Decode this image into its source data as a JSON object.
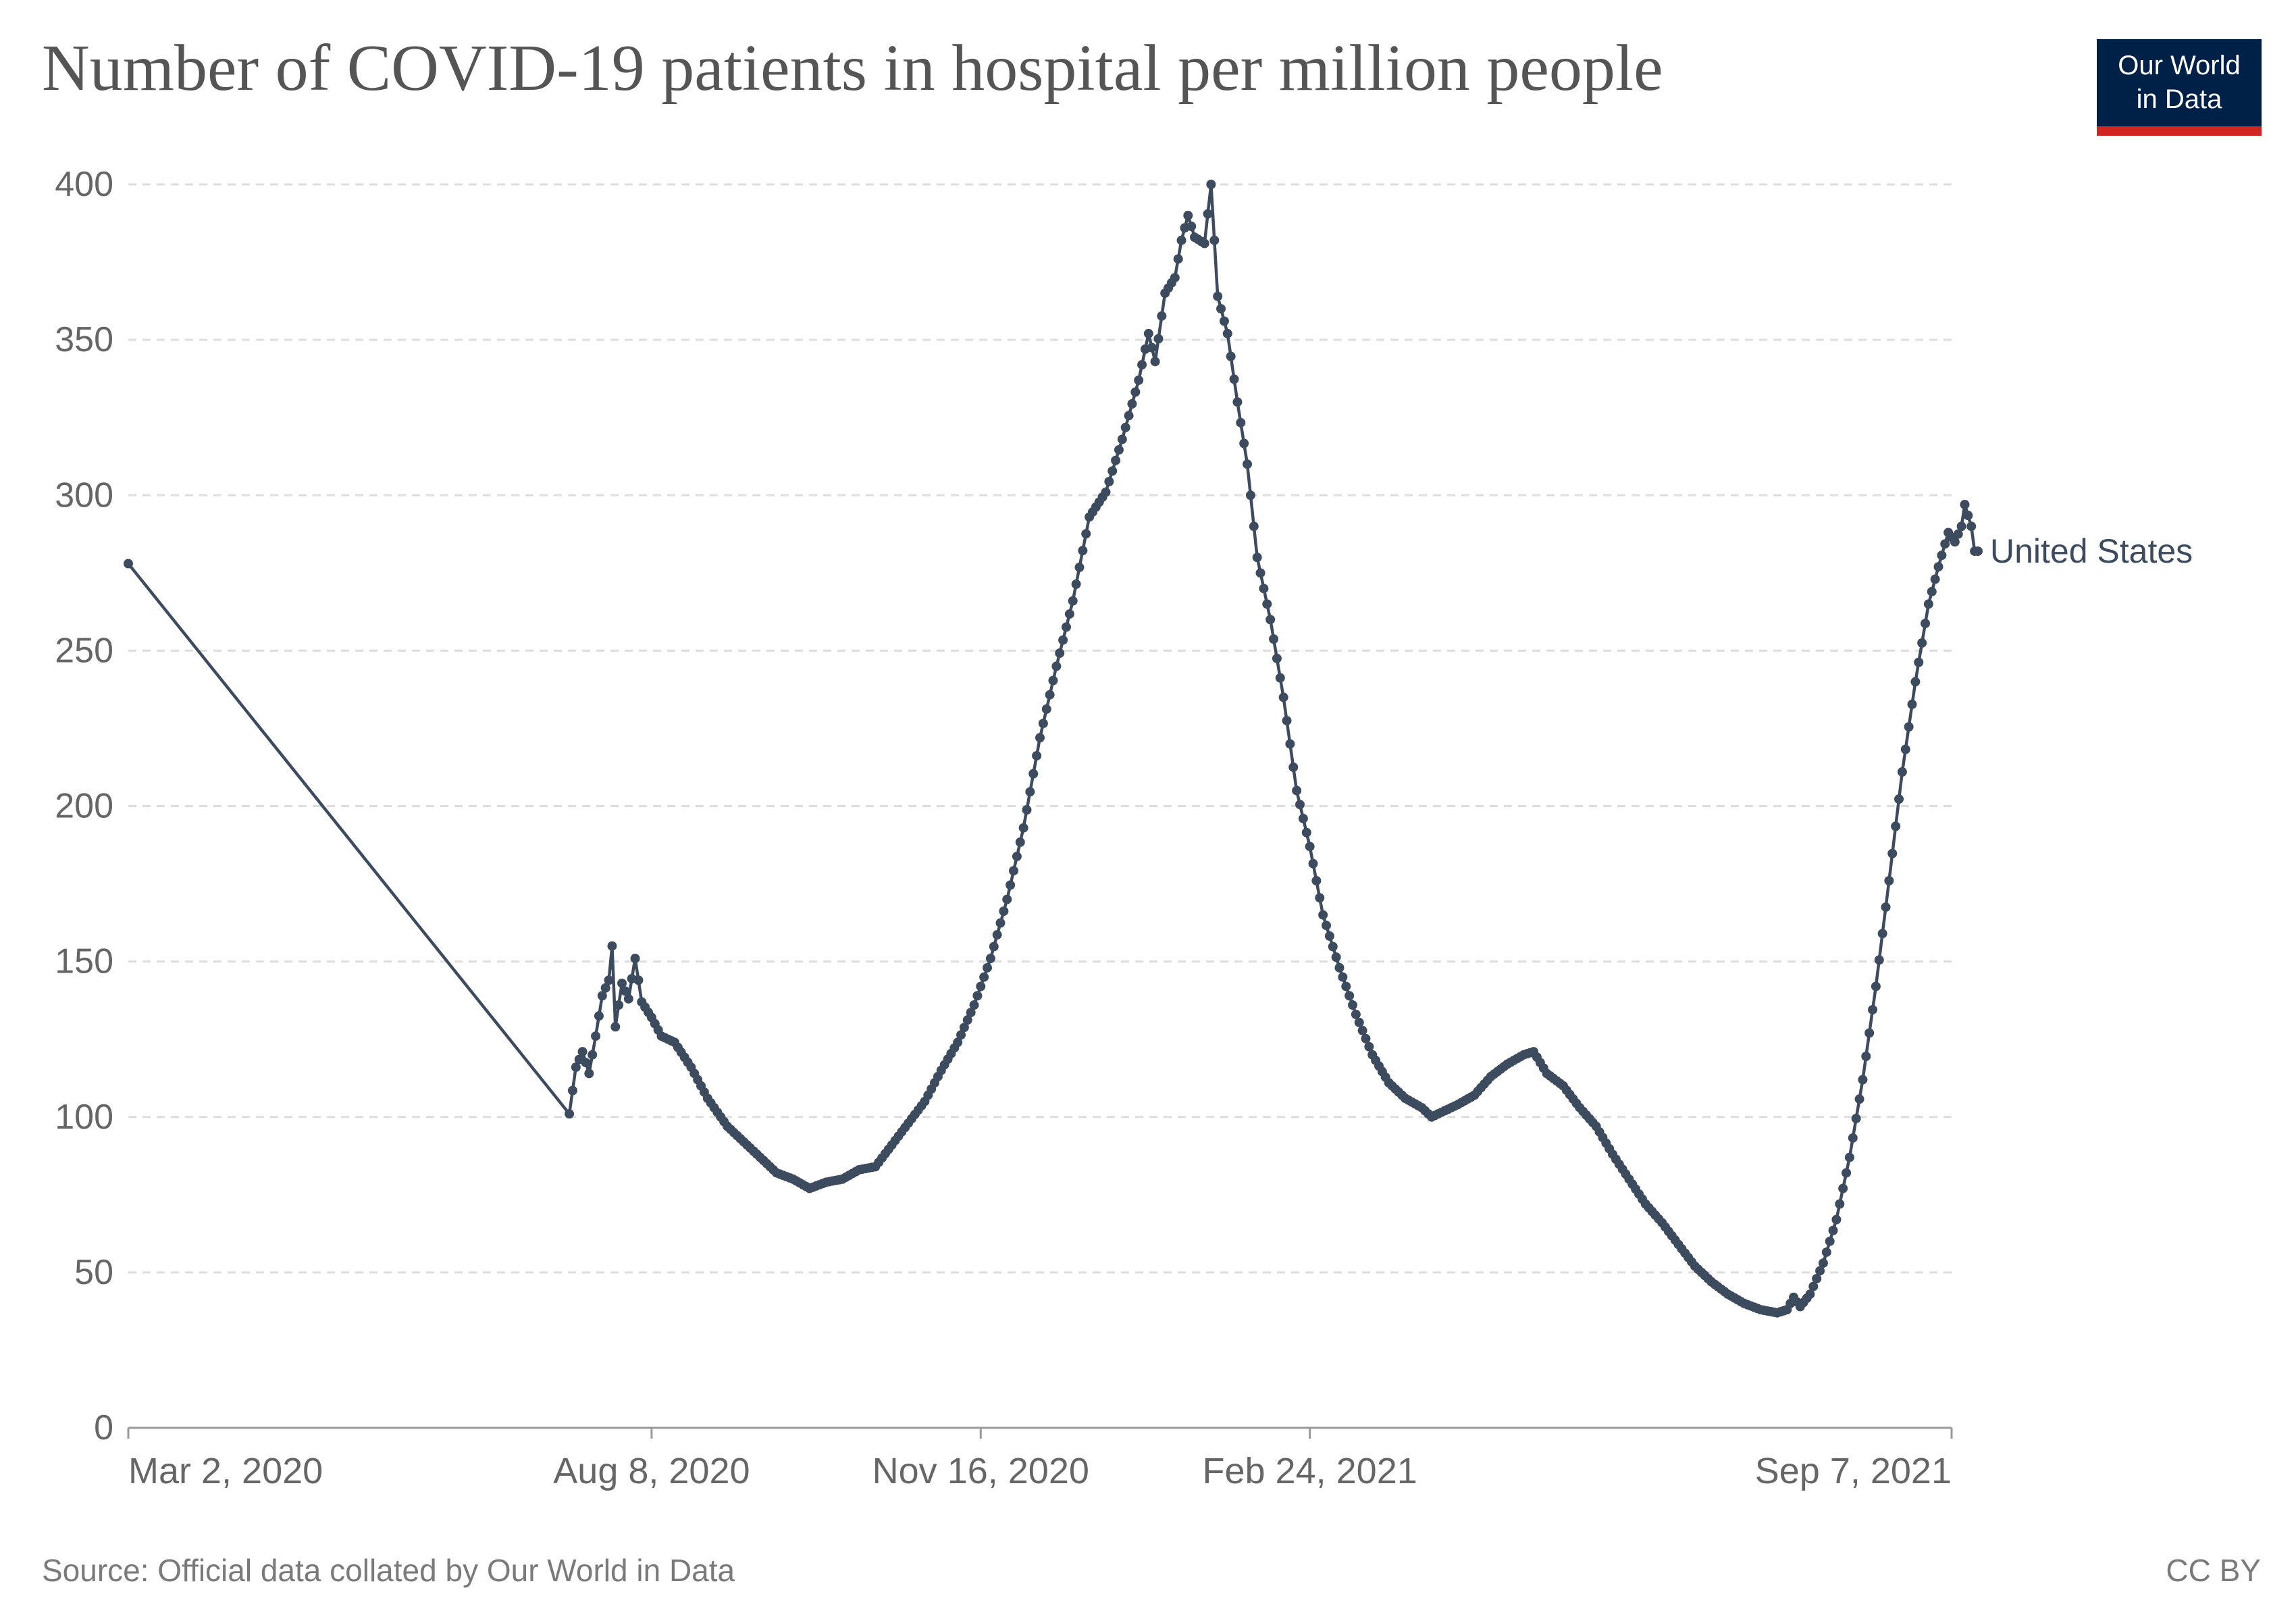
{
  "title": "Number of COVID-19 patients in hospital per million people",
  "logo": {
    "line1": "Our World",
    "line2": "in Data"
  },
  "source": "Source: Official data collated by Our World in Data",
  "license": "CC BY",
  "colors": {
    "series": "#3d4b5f",
    "grid": "#dddddd",
    "axis": "#999999",
    "tick_label": "#666666",
    "logo_bg": "#002147",
    "logo_bar": "#ce261e"
  },
  "chart_data": {
    "type": "line",
    "title": "Number of COVID-19 patients in hospital per million people",
    "xlabel": "",
    "ylabel": "",
    "xlim": [
      "2020-03-02",
      "2021-09-07"
    ],
    "ylim": [
      0,
      400
    ],
    "grid": "horizontal dashed",
    "x_ticks": [
      {
        "date": "2020-03-02",
        "label": "Mar 2, 2020"
      },
      {
        "date": "2020-08-08",
        "label": "Aug 8, 2020"
      },
      {
        "date": "2020-11-16",
        "label": "Nov 16, 2020"
      },
      {
        "date": "2021-02-24",
        "label": "Feb 24, 2021"
      },
      {
        "date": "2021-09-07",
        "label": "Sep 7, 2021"
      }
    ],
    "y_ticks": [
      0,
      50,
      100,
      150,
      200,
      250,
      300,
      350,
      400
    ],
    "series": [
      {
        "name": "United States",
        "points": [
          [
            "2020-03-02",
            278
          ],
          [
            "2020-07-14",
            101
          ],
          [
            "2020-07-16",
            116
          ],
          [
            "2020-07-18",
            121
          ],
          [
            "2020-07-20",
            114
          ],
          [
            "2020-07-22",
            126
          ],
          [
            "2020-07-24",
            139
          ],
          [
            "2020-07-26",
            144
          ],
          [
            "2020-07-27",
            155
          ],
          [
            "2020-07-28",
            129
          ],
          [
            "2020-07-30",
            143
          ],
          [
            "2020-08-01",
            138
          ],
          [
            "2020-08-03",
            151
          ],
          [
            "2020-08-05",
            137
          ],
          [
            "2020-08-08",
            132
          ],
          [
            "2020-08-11",
            126
          ],
          [
            "2020-08-15",
            124
          ],
          [
            "2020-08-20",
            116
          ],
          [
            "2020-08-25",
            106
          ],
          [
            "2020-08-31",
            97
          ],
          [
            "2020-09-05",
            92
          ],
          [
            "2020-09-10",
            87
          ],
          [
            "2020-09-15",
            82
          ],
          [
            "2020-09-20",
            80
          ],
          [
            "2020-09-25",
            77
          ],
          [
            "2020-09-30",
            79
          ],
          [
            "2020-10-05",
            80
          ],
          [
            "2020-10-10",
            83
          ],
          [
            "2020-10-15",
            84
          ],
          [
            "2020-10-20",
            91
          ],
          [
            "2020-10-25",
            98
          ],
          [
            "2020-10-30",
            105
          ],
          [
            "2020-11-04",
            115
          ],
          [
            "2020-11-09",
            124
          ],
          [
            "2020-11-14",
            136
          ],
          [
            "2020-11-19",
            151
          ],
          [
            "2020-11-24",
            170
          ],
          [
            "2020-11-29",
            193
          ],
          [
            "2020-12-04",
            222
          ],
          [
            "2020-12-09",
            245
          ],
          [
            "2020-12-14",
            266
          ],
          [
            "2020-12-19",
            293
          ],
          [
            "2020-12-24",
            301
          ],
          [
            "2020-12-29",
            318
          ],
          [
            "2021-01-03",
            337
          ],
          [
            "2021-01-06",
            352
          ],
          [
            "2021-01-08",
            343
          ],
          [
            "2021-01-11",
            365
          ],
          [
            "2021-01-14",
            370
          ],
          [
            "2021-01-16",
            382
          ],
          [
            "2021-01-18",
            390
          ],
          [
            "2021-01-20",
            383
          ],
          [
            "2021-01-23",
            381
          ],
          [
            "2021-01-25",
            400
          ],
          [
            "2021-01-27",
            364
          ],
          [
            "2021-01-30",
            352
          ],
          [
            "2021-02-02",
            330
          ],
          [
            "2021-02-05",
            310
          ],
          [
            "2021-02-08",
            280
          ],
          [
            "2021-02-12",
            260
          ],
          [
            "2021-02-16",
            235
          ],
          [
            "2021-02-20",
            205
          ],
          [
            "2021-02-24",
            187
          ],
          [
            "2021-02-28",
            165
          ],
          [
            "2021-03-05",
            148
          ],
          [
            "2021-03-10",
            133
          ],
          [
            "2021-03-15",
            120
          ],
          [
            "2021-03-20",
            111
          ],
          [
            "2021-03-25",
            106
          ],
          [
            "2021-03-30",
            103
          ],
          [
            "2021-04-02",
            100
          ],
          [
            "2021-04-06",
            102
          ],
          [
            "2021-04-10",
            104
          ],
          [
            "2021-04-15",
            107
          ],
          [
            "2021-04-20",
            113
          ],
          [
            "2021-04-25",
            117
          ],
          [
            "2021-04-30",
            120
          ],
          [
            "2021-05-03",
            121
          ],
          [
            "2021-05-07",
            114
          ],
          [
            "2021-05-12",
            110
          ],
          [
            "2021-05-17",
            103
          ],
          [
            "2021-05-22",
            97
          ],
          [
            "2021-05-27",
            88
          ],
          [
            "2021-06-01",
            80
          ],
          [
            "2021-06-06",
            72
          ],
          [
            "2021-06-11",
            66
          ],
          [
            "2021-06-16",
            59
          ],
          [
            "2021-06-21",
            52
          ],
          [
            "2021-06-26",
            47
          ],
          [
            "2021-07-01",
            43
          ],
          [
            "2021-07-06",
            40
          ],
          [
            "2021-07-11",
            38
          ],
          [
            "2021-07-16",
            37
          ],
          [
            "2021-07-19",
            38
          ],
          [
            "2021-07-21",
            42
          ],
          [
            "2021-07-23",
            39
          ],
          [
            "2021-07-26",
            43
          ],
          [
            "2021-07-30",
            53
          ],
          [
            "2021-08-03",
            67
          ],
          [
            "2021-08-07",
            87
          ],
          [
            "2021-08-11",
            112
          ],
          [
            "2021-08-15",
            142
          ],
          [
            "2021-08-19",
            176
          ],
          [
            "2021-08-23",
            211
          ],
          [
            "2021-08-27",
            240
          ],
          [
            "2021-08-31",
            265
          ],
          [
            "2021-09-03",
            277
          ],
          [
            "2021-09-06",
            288
          ],
          [
            "2021-09-08",
            285
          ],
          [
            "2021-09-10",
            290
          ],
          [
            "2021-09-11",
            297
          ],
          [
            "2021-09-13",
            290
          ],
          [
            "2021-09-14",
            282
          ],
          [
            "2021-09-15",
            282
          ]
        ]
      }
    ]
  }
}
